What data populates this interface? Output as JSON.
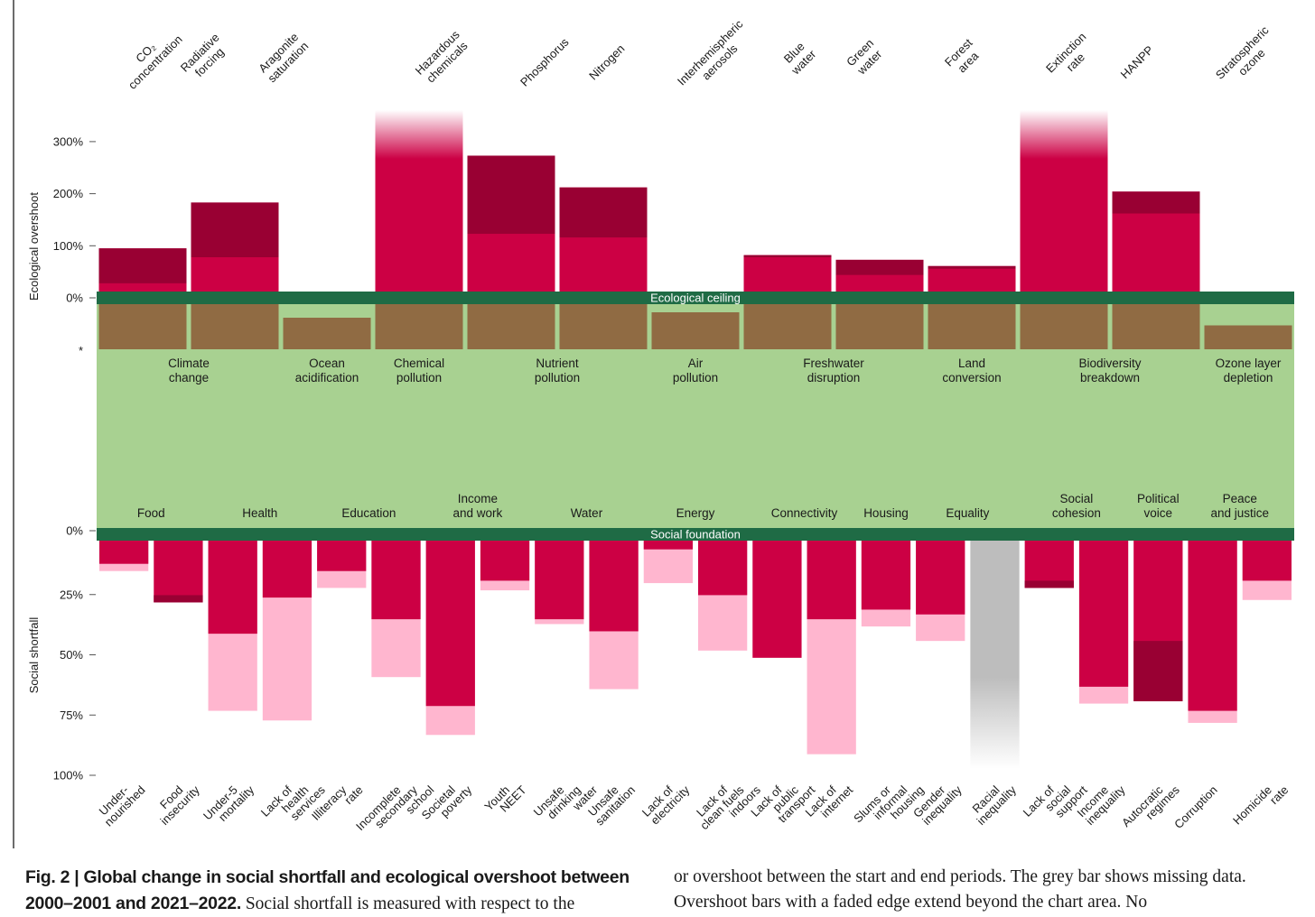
{
  "chart_data": {
    "type": "bar",
    "axes": {
      "overshoot_label": "Ecological overshoot",
      "shortfall_label": "Social shortfall",
      "overshoot_ticks": [
        {
          "value": 300,
          "label": "300%"
        },
        {
          "value": 200,
          "label": "200%"
        },
        {
          "value": 100,
          "label": "100%"
        },
        {
          "value": 0,
          "label": "0%"
        }
      ],
      "overshoot_star": "*",
      "shortfall_ticks": [
        {
          "value": 0,
          "label": "0%"
        },
        {
          "value": 25,
          "label": "25%"
        },
        {
          "value": 50,
          "label": "50%"
        },
        {
          "value": 75,
          "label": "75%"
        },
        {
          "value": 100,
          "label": "100%"
        }
      ],
      "overshoot_ylim": [
        0,
        300
      ],
      "shortfall_ylim": [
        0,
        100
      ]
    },
    "bands": {
      "ceiling_label": "Ecological ceiling",
      "foundation_label": "Social foundation"
    },
    "ecological_dimensions": [
      {
        "label": "Climate\nchange",
        "first": 0,
        "last": 1
      },
      {
        "label": "Ocean\nacidification",
        "first": 2,
        "last": 2
      },
      {
        "label": "Chemical\npollution",
        "first": 3,
        "last": 3
      },
      {
        "label": "Nutrient\npollution",
        "first": 4,
        "last": 5
      },
      {
        "label": "Air\npollution",
        "first": 6,
        "last": 6
      },
      {
        "label": "Freshwater\ndisruption",
        "first": 7,
        "last": 8
      },
      {
        "label": "Land\nconversion",
        "first": 9,
        "last": 9
      },
      {
        "label": "Biodiversity\nbreakdown",
        "first": 10,
        "last": 11
      },
      {
        "label": "Ozone layer\ndepletion",
        "first": 12,
        "last": 12
      }
    ],
    "ecological_series": [
      {
        "indicator": "CO₂\nconcentration",
        "start": 28,
        "end": 95,
        "below": 1.0
      },
      {
        "indicator": "Radiative\nforcing",
        "start": 78,
        "end": 183,
        "below": 1.0
      },
      {
        "indicator": "Aragonite\nsaturation",
        "start": null,
        "end": null,
        "below": 0.7
      },
      {
        "indicator": "Hazardous\nchemicals",
        "start": 260,
        "end": 360,
        "below": 1.0,
        "faded": true
      },
      {
        "indicator": "Phosphorus",
        "start": 123,
        "end": 273,
        "below": 1.0
      },
      {
        "indicator": "Nitrogen",
        "start": 116,
        "end": 212,
        "below": 1.0
      },
      {
        "indicator": "Interhemispheric\naerosols",
        "start": null,
        "end": null,
        "below": 0.82
      },
      {
        "indicator": "Blue\nwater",
        "start": 78,
        "end": 82,
        "below": 1.0
      },
      {
        "indicator": "Green\nwater",
        "start": 44,
        "end": 73,
        "below": 1.0
      },
      {
        "indicator": "Forest\narea",
        "start": 56,
        "end": 61,
        "below": 1.0
      },
      {
        "indicator": "Extinction\nrate",
        "start": 260,
        "end": 360,
        "below": 1.0,
        "faded": true
      },
      {
        "indicator": "HANPP",
        "start": 162,
        "end": 204,
        "below": 1.0
      },
      {
        "indicator": "Stratospheric\nozone",
        "start": null,
        "end": null,
        "below": 0.53
      }
    ],
    "social_dimensions": [
      {
        "label": "Food",
        "first": 0,
        "last": 1
      },
      {
        "label": "Health",
        "first": 2,
        "last": 3
      },
      {
        "label": "Education",
        "first": 4,
        "last": 5
      },
      {
        "label": "Income\nand work",
        "first": 6,
        "last": 7
      },
      {
        "label": "Water",
        "first": 8,
        "last": 9
      },
      {
        "label": "Energy",
        "first": 10,
        "last": 11
      },
      {
        "label": "Connectivity",
        "first": 12,
        "last": 13
      },
      {
        "label": "Housing",
        "first": 14,
        "last": 14
      },
      {
        "label": "Equality",
        "first": 15,
        "last": 16
      },
      {
        "label": "Social\ncohesion",
        "first": 17,
        "last": 18
      },
      {
        "label": "Political\nvoice",
        "first": 19,
        "last": 19
      },
      {
        "label": "Peace\nand justice",
        "first": 20,
        "last": 21
      }
    ],
    "social_series": [
      {
        "indicator": "Under-\nnourished",
        "start": 13,
        "end": 10
      },
      {
        "indicator": "Food\ninsecurity",
        "start": 23,
        "end": 26
      },
      {
        "indicator": "Under-5\nmortality",
        "start": 71,
        "end": 39
      },
      {
        "indicator": "Lack of\nhealth\nservices",
        "start": 75,
        "end": 24
      },
      {
        "indicator": "Illiteracy\nrate",
        "start": 20,
        "end": 13
      },
      {
        "indicator": "Incomplete\nsecondary\nschool",
        "start": 57,
        "end": 33
      },
      {
        "indicator": "Societal\npoverty",
        "start": 81,
        "end": 69
      },
      {
        "indicator": "Youth\nNEET",
        "start": 21,
        "end": 17
      },
      {
        "indicator": "Unsafe\ndrinking\nwater",
        "start": 35,
        "end": 33
      },
      {
        "indicator": "Unsafe\nsanitation",
        "start": 62,
        "end": 38
      },
      {
        "indicator": "Lack of\nelectricity",
        "start": 18,
        "end": 4
      },
      {
        "indicator": "Lack of\nclean fuels\nindoors",
        "start": 46,
        "end": 23
      },
      {
        "indicator": "Lack of\npublic\ntransport",
        "start": 49,
        "end": 49
      },
      {
        "indicator": "Lack of\ninternet",
        "start": 89,
        "end": 33
      },
      {
        "indicator": "Slums or\ninformal\nhousing",
        "start": 36,
        "end": 29
      },
      {
        "indicator": "Gender\ninequality",
        "start": 42,
        "end": 31
      },
      {
        "indicator": "Racial\ninequality",
        "start": null,
        "end": null,
        "missing": true
      },
      {
        "indicator": "Lack of\nsocial\nsupport",
        "start": 17,
        "end": 20
      },
      {
        "indicator": "Income\ninequality",
        "start": 68,
        "end": 61
      },
      {
        "indicator": "Autocratic\nregimes",
        "start": 42,
        "end": 67
      },
      {
        "indicator": "Corruption",
        "start": 76,
        "end": 71
      },
      {
        "indicator": "Homicide\nrate",
        "start": 25,
        "end": 17
      }
    ]
  },
  "caption": {
    "left_bold": "Fig. 2 | Global change in social shortfall and ecological overshoot between 2000–2001 and 2021–2022.",
    "left_text": " Social shortfall is measured with respect to the",
    "right_text": "or overshoot between the start and end periods. The grey bar shows missing data. Overshoot bars with a faded edge extend beyond the chart area. No"
  },
  "colors": {
    "safe_zone": "#a8d191",
    "band": "#1f6b45",
    "below_ceiling": "#906b43",
    "current": "#cc0044",
    "worsened": "#990033",
    "improved": "#ffb6cf",
    "missing": "#bdbdbd",
    "axis_text": "#1a1a1a"
  }
}
